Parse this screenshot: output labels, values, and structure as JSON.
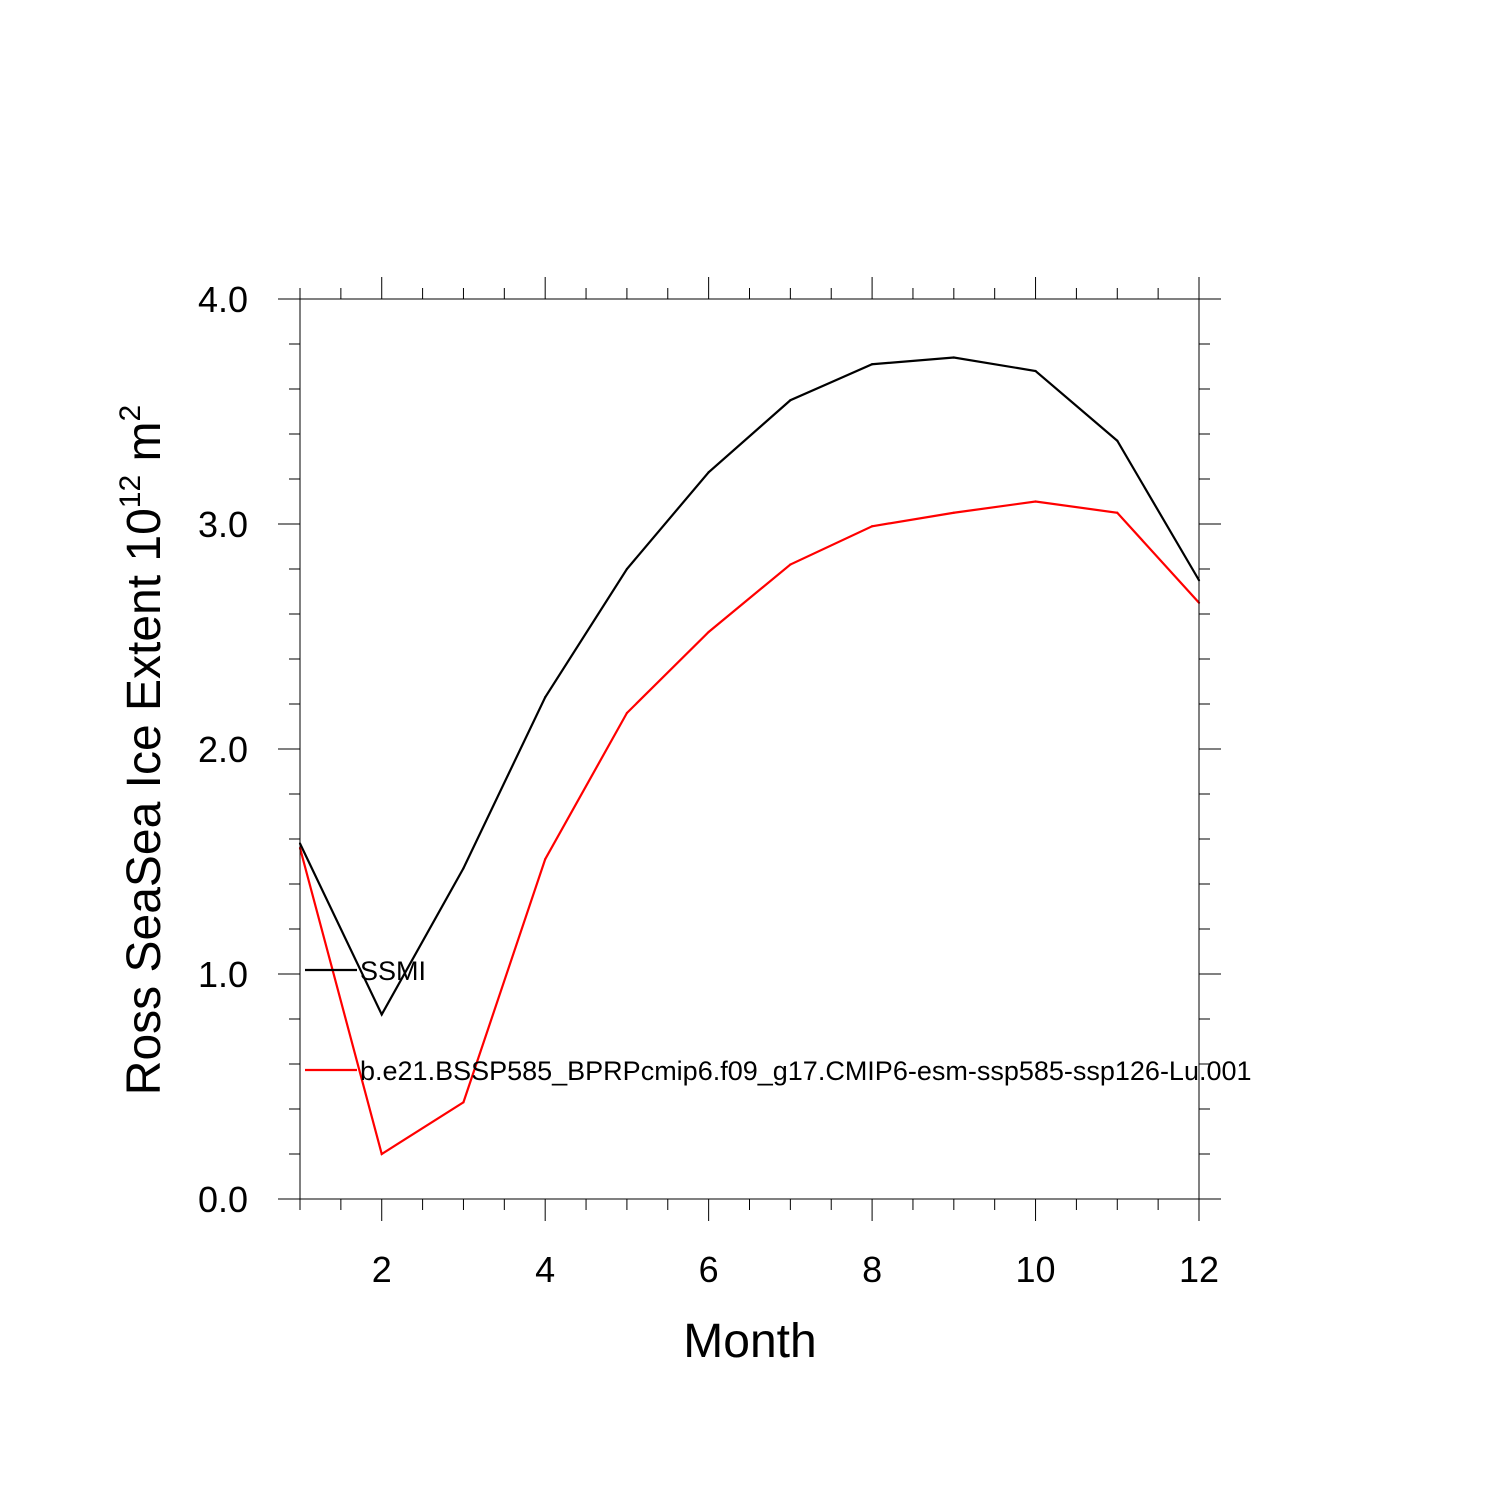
{
  "chart_data": {
    "type": "line",
    "title": "",
    "xlabel": "Month",
    "ylabel": {
      "text": "Ross SeaSea Ice Extent 10",
      "exponent": "12",
      "unit": " m",
      "unit_exponent": "2"
    },
    "xlim": [
      1,
      12
    ],
    "ylim": [
      0,
      4
    ],
    "x_ticks": [
      2,
      4,
      6,
      8,
      10,
      12
    ],
    "x_tick_labels": [
      "2",
      "4",
      "6",
      "8",
      "10",
      "12"
    ],
    "y_ticks": [
      0,
      1,
      2,
      3,
      4
    ],
    "y_tick_labels": [
      "0.0",
      "1.0",
      "2.0",
      "3.0",
      "4.0"
    ],
    "grid": false,
    "legend_position": "inside-left",
    "x": [
      1,
      2,
      3,
      4,
      5,
      6,
      7,
      8,
      9,
      10,
      11,
      12
    ],
    "series": [
      {
        "name": "SSMI",
        "color": "#000000",
        "values": [
          1.58,
          0.82,
          1.47,
          2.23,
          2.8,
          3.23,
          3.55,
          3.71,
          3.74,
          3.68,
          3.37,
          2.75
        ]
      },
      {
        "name": "b.e21.BSSP585_BPRPcmip6.f09_g17.CMIP6-esm-ssp585-ssp126-Lu.001",
        "color": "#ff0000",
        "values": [
          1.56,
          0.2,
          0.43,
          1.51,
          2.16,
          2.52,
          2.82,
          2.99,
          3.05,
          3.1,
          3.05,
          2.65
        ]
      }
    ]
  }
}
